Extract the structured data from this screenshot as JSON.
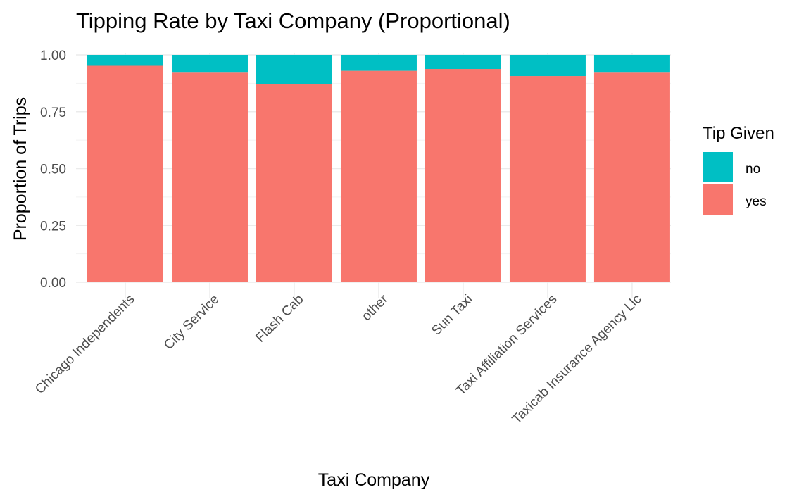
{
  "chart_data": {
    "type": "bar",
    "stacked": "proportional",
    "title": "Tipping Rate by Taxi Company (Proportional)",
    "xlabel": "Taxi Company",
    "ylabel": "Proportion of Trips",
    "ylim": [
      0,
      1
    ],
    "yticks": [
      "0.00",
      "0.25",
      "0.50",
      "0.75",
      "1.00"
    ],
    "categories": [
      "Chicago Independents",
      "City Service",
      "Flash Cab",
      "other",
      "Sun Taxi",
      "Taxi Affiliation Services",
      "Taxicab Insurance Agency Llc"
    ],
    "series": [
      {
        "name": "yes",
        "color": "#F8766D",
        "values": [
          0.952,
          0.925,
          0.87,
          0.93,
          0.938,
          0.907,
          0.925
        ]
      },
      {
        "name": "no",
        "color": "#00BFC4",
        "values": [
          0.048,
          0.075,
          0.13,
          0.07,
          0.062,
          0.093,
          0.075
        ]
      }
    ],
    "legend": {
      "title": "Tip Given",
      "position": "right",
      "entries": [
        "no",
        "yes"
      ]
    },
    "grid": true
  }
}
